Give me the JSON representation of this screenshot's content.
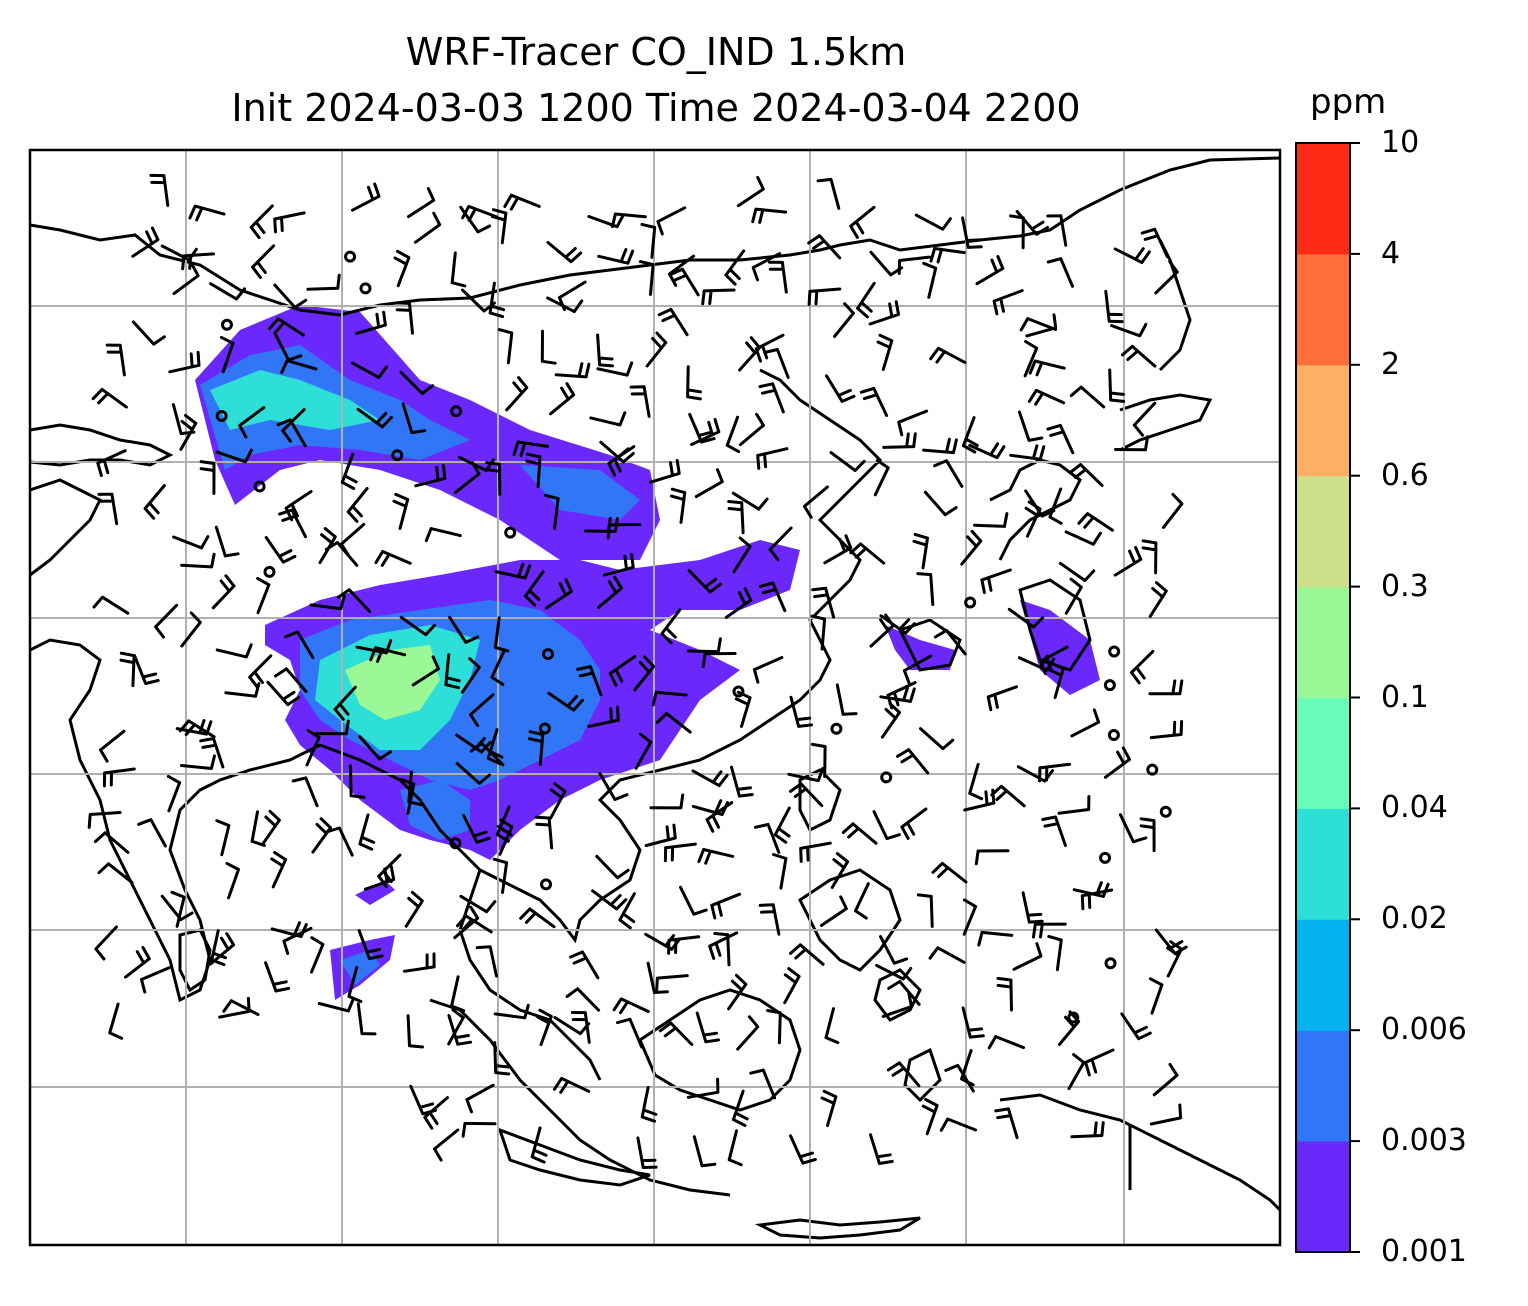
{
  "chart_data": {
    "type": "heatmap",
    "title": "WRF-Tracer CO_IND 1.5km",
    "subtitle": "Init 2024-03-03 1200 Time 2024-03-04 2200",
    "colorbar": {
      "unit": "ppm",
      "levels": [
        "0.001",
        "0.003",
        "0.006",
        "0.02",
        "0.04",
        "0.1",
        "0.3",
        "0.6",
        "2",
        "4",
        "10"
      ],
      "colors": [
        "#6a28fb",
        "#3176f6",
        "#03b2ee",
        "#2ddfd6",
        "#68fbb9",
        "#9af996",
        "#cfe08a",
        "#fdb063",
        "#fc6e3a",
        "#fe2c17"
      ]
    },
    "map": {
      "grid": true,
      "coastlines": true,
      "wind_barbs": true,
      "lon_lines": 7,
      "lat_lines": 6
    }
  }
}
